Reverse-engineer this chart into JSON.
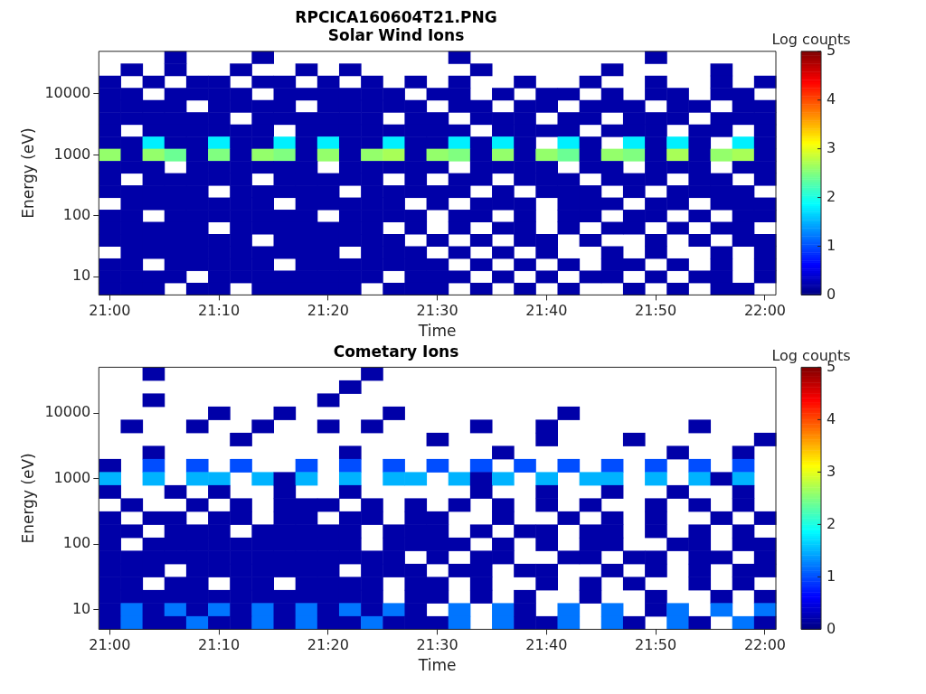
{
  "chart_data": [
    {
      "type": "heatmap",
      "title": "RPCICA160604T21.PNG",
      "subtitle": "Solar Wind Ions",
      "xlabel": "Time",
      "ylabel": "Energy (eV)",
      "clabel": "Log counts",
      "clim": [
        0,
        5
      ],
      "cticks": [
        0,
        1,
        2,
        3,
        4,
        5
      ],
      "categories": [
        "21:00",
        null,
        null,
        null,
        null,
        "21:10",
        null,
        null,
        null,
        null,
        "21:20",
        null,
        null,
        null,
        null,
        "21:30",
        null,
        null,
        null,
        null,
        "21:40",
        null,
        null,
        null,
        null,
        "21:50",
        null,
        null,
        null,
        null,
        "22:00"
      ],
      "y_categories": [
        null,
        null,
        null,
        "10000",
        null,
        null,
        null,
        null,
        "1000",
        null,
        null,
        null,
        null,
        "100",
        null,
        null,
        null,
        null,
        "10",
        null
      ],
      "cells": [
        [
          null,
          null,
          null,
          0.2,
          null,
          null,
          null,
          0.2,
          null,
          null,
          null,
          null,
          null,
          null,
          null,
          null,
          0.2,
          null,
          null,
          null,
          null,
          null,
          null,
          null,
          null,
          0.2,
          null,
          null,
          null,
          null,
          null
        ],
        [
          null,
          0.2,
          null,
          0.2,
          null,
          null,
          0.2,
          null,
          null,
          0.2,
          null,
          0.2,
          null,
          null,
          null,
          null,
          null,
          0.2,
          null,
          null,
          null,
          null,
          null,
          0.2,
          null,
          null,
          null,
          null,
          0.2,
          null,
          null
        ],
        [
          0.2,
          null,
          0.2,
          null,
          0.2,
          0.2,
          null,
          0.2,
          0.2,
          null,
          0.2,
          null,
          0.2,
          null,
          0.2,
          null,
          0.2,
          null,
          null,
          0.2,
          null,
          null,
          0.2,
          null,
          null,
          0.2,
          null,
          null,
          0.2,
          null,
          0.2
        ],
        [
          0.2,
          0.2,
          null,
          0.2,
          0.2,
          0.2,
          0.2,
          null,
          0.2,
          0.2,
          0.2,
          0.2,
          0.2,
          0.2,
          null,
          0.2,
          0.2,
          null,
          0.2,
          null,
          0.2,
          0.2,
          null,
          0.2,
          null,
          0.2,
          0.2,
          null,
          0.2,
          0.2,
          null
        ],
        [
          0.2,
          0.2,
          0.2,
          0.2,
          null,
          0.2,
          0.2,
          0.2,
          0.2,
          null,
          0.2,
          0.2,
          0.2,
          0.2,
          0.2,
          null,
          0.2,
          0.2,
          null,
          0.2,
          0.2,
          null,
          0.2,
          0.2,
          0.2,
          null,
          0.2,
          0.2,
          null,
          0.2,
          0.2
        ],
        [
          0.2,
          0.2,
          0.2,
          0.2,
          0.2,
          0.2,
          null,
          0.2,
          0.2,
          0.2,
          0.2,
          0.2,
          0.2,
          null,
          0.2,
          0.2,
          null,
          0.2,
          0.2,
          0.2,
          null,
          0.2,
          0.2,
          null,
          0.2,
          0.2,
          0.2,
          null,
          0.2,
          0.2,
          0.2
        ],
        [
          0.2,
          null,
          0.2,
          0.2,
          0.2,
          0.2,
          0.2,
          0.2,
          null,
          0.2,
          0.2,
          0.2,
          0.2,
          0.2,
          0.2,
          0.2,
          0.2,
          null,
          0.2,
          0.2,
          0.2,
          0.2,
          null,
          0.2,
          0.2,
          0.2,
          null,
          0.2,
          0.2,
          null,
          0.2
        ],
        [
          0.2,
          0.2,
          1.8,
          0.2,
          0.2,
          1.8,
          0.2,
          0.2,
          1.8,
          0.2,
          1.8,
          0.2,
          0.2,
          1.8,
          0.2,
          0.2,
          1.8,
          0.2,
          1.8,
          0.2,
          null,
          1.8,
          0.2,
          null,
          1.8,
          0.2,
          1.8,
          0.2,
          null,
          1.8,
          0.2
        ],
        [
          2.6,
          0.2,
          2.6,
          2.4,
          0.2,
          2.5,
          0.2,
          2.6,
          2.5,
          0.2,
          2.6,
          0.2,
          2.6,
          2.7,
          0.2,
          2.6,
          2.5,
          0.2,
          2.6,
          0.2,
          2.6,
          2.4,
          0.2,
          2.6,
          2.5,
          0.2,
          2.7,
          0.2,
          2.6,
          2.7,
          0.2
        ],
        [
          0.2,
          0.2,
          0.2,
          null,
          0.2,
          0.2,
          0.2,
          0.2,
          0.2,
          0.2,
          null,
          0.2,
          0.2,
          0.2,
          0.2,
          0.2,
          null,
          0.2,
          0.2,
          0.2,
          0.2,
          null,
          0.2,
          0.2,
          null,
          0.2,
          0.2,
          0.2,
          null,
          0.2,
          0.2
        ],
        [
          0.2,
          null,
          0.2,
          0.2,
          0.2,
          0.2,
          0.2,
          null,
          0.2,
          0.2,
          0.2,
          0.2,
          0.2,
          null,
          0.2,
          null,
          0.2,
          0.2,
          null,
          0.2,
          0.2,
          0.2,
          null,
          0.2,
          0.2,
          0.2,
          null,
          0.2,
          0.2,
          null,
          0.2
        ],
        [
          0.2,
          0.2,
          0.2,
          0.2,
          0.2,
          null,
          0.2,
          0.2,
          0.2,
          0.2,
          0.2,
          null,
          0.2,
          0.2,
          0.2,
          0.2,
          0.2,
          null,
          0.2,
          null,
          0.2,
          0.2,
          0.2,
          null,
          0.2,
          null,
          0.2,
          0.2,
          0.2,
          0.2,
          null
        ],
        [
          null,
          0.2,
          0.2,
          0.2,
          0.2,
          0.2,
          0.2,
          0.2,
          null,
          0.2,
          0.2,
          0.2,
          0.2,
          0.2,
          null,
          0.2,
          null,
          0.2,
          0.2,
          0.2,
          null,
          0.2,
          0.2,
          0.2,
          null,
          0.2,
          0.2,
          null,
          0.2,
          0.2,
          0.2
        ],
        [
          0.2,
          0.2,
          null,
          0.2,
          0.2,
          0.2,
          0.2,
          0.2,
          0.2,
          0.2,
          null,
          0.2,
          0.2,
          0.2,
          0.2,
          null,
          0.2,
          0.2,
          null,
          0.2,
          null,
          0.2,
          0.2,
          null,
          0.2,
          0.2,
          null,
          0.2,
          null,
          0.2,
          0.2
        ],
        [
          0.2,
          0.2,
          0.2,
          0.2,
          0.2,
          null,
          0.2,
          0.2,
          0.2,
          0.2,
          0.2,
          0.2,
          0.2,
          null,
          0.2,
          null,
          0.2,
          null,
          0.2,
          0.2,
          null,
          0.2,
          null,
          0.2,
          0.2,
          null,
          0.2,
          null,
          0.2,
          0.2,
          null
        ],
        [
          0.2,
          0.2,
          0.2,
          0.2,
          0.2,
          0.2,
          0.2,
          null,
          0.2,
          0.2,
          0.2,
          0.2,
          0.2,
          0.2,
          null,
          0.2,
          null,
          0.2,
          null,
          0.2,
          0.2,
          null,
          0.2,
          null,
          null,
          0.2,
          null,
          0.2,
          null,
          0.2,
          0.2
        ],
        [
          null,
          0.2,
          0.2,
          0.2,
          0.2,
          0.2,
          0.2,
          0.2,
          0.2,
          0.2,
          0.2,
          null,
          0.2,
          0.2,
          0.2,
          null,
          0.2,
          null,
          0.2,
          null,
          0.2,
          null,
          null,
          0.2,
          null,
          0.2,
          null,
          null,
          0.2,
          null,
          0.2
        ],
        [
          0.2,
          0.2,
          null,
          0.2,
          0.2,
          0.2,
          0.2,
          0.2,
          null,
          0.2,
          0.2,
          0.2,
          0.2,
          0.2,
          0.2,
          0.2,
          null,
          0.2,
          null,
          0.2,
          null,
          0.2,
          null,
          0.2,
          0.2,
          null,
          0.2,
          null,
          0.2,
          null,
          0.2
        ],
        [
          0.2,
          0.2,
          0.2,
          0.2,
          null,
          0.2,
          0.2,
          0.2,
          0.2,
          0.2,
          0.2,
          0.2,
          0.2,
          null,
          0.2,
          0.2,
          0.2,
          null,
          0.2,
          null,
          0.2,
          null,
          0.2,
          0.2,
          null,
          0.2,
          null,
          0.2,
          0.2,
          null,
          0.2
        ],
        [
          0.2,
          0.2,
          0.2,
          null,
          0.2,
          0.2,
          null,
          0.2,
          0.2,
          0.2,
          0.2,
          0.2,
          null,
          0.2,
          0.2,
          0.2,
          null,
          0.2,
          null,
          0.2,
          null,
          0.2,
          null,
          null,
          0.2,
          null,
          0.2,
          null,
          0.2,
          0.2,
          null
        ]
      ]
    },
    {
      "type": "heatmap",
      "title": "Cometary Ions",
      "xlabel": "Time",
      "ylabel": "Energy (eV)",
      "clabel": "Log counts",
      "clim": [
        0,
        5
      ],
      "cticks": [
        0,
        1,
        2,
        3,
        4,
        5
      ],
      "categories": [
        "21:00",
        null,
        null,
        null,
        null,
        "21:10",
        null,
        null,
        null,
        null,
        "21:20",
        null,
        null,
        null,
        null,
        "21:30",
        null,
        null,
        null,
        null,
        "21:40",
        null,
        null,
        null,
        null,
        "21:50",
        null,
        null,
        null,
        null,
        "22:00"
      ],
      "y_categories": [
        null,
        null,
        null,
        "10000",
        null,
        null,
        null,
        null,
        "1000",
        null,
        null,
        null,
        null,
        "100",
        null,
        null,
        null,
        null,
        "10",
        null
      ],
      "cells": [
        [
          null,
          null,
          0.2,
          null,
          null,
          null,
          null,
          null,
          null,
          null,
          null,
          null,
          0.2,
          null,
          null,
          null,
          null,
          null,
          null,
          null,
          null,
          null,
          null,
          null,
          null,
          null,
          null,
          null,
          null,
          null,
          null
        ],
        [
          null,
          null,
          null,
          null,
          null,
          null,
          null,
          null,
          null,
          null,
          null,
          0.2,
          null,
          null,
          null,
          null,
          null,
          null,
          null,
          null,
          null,
          null,
          null,
          null,
          null,
          null,
          null,
          null,
          null,
          null,
          null
        ],
        [
          null,
          null,
          0.2,
          null,
          null,
          null,
          null,
          null,
          null,
          null,
          0.2,
          null,
          null,
          null,
          null,
          null,
          null,
          null,
          null,
          null,
          null,
          null,
          null,
          null,
          null,
          null,
          null,
          null,
          null,
          null,
          null
        ],
        [
          null,
          null,
          null,
          null,
          null,
          0.2,
          null,
          null,
          0.2,
          null,
          null,
          null,
          null,
          0.2,
          null,
          null,
          null,
          null,
          null,
          null,
          null,
          0.2,
          null,
          null,
          null,
          null,
          null,
          null,
          null,
          null,
          null
        ],
        [
          null,
          0.2,
          null,
          null,
          0.2,
          null,
          null,
          0.2,
          null,
          null,
          0.2,
          null,
          0.2,
          null,
          null,
          null,
          null,
          0.2,
          null,
          null,
          0.2,
          null,
          null,
          null,
          null,
          null,
          null,
          0.2,
          null,
          null,
          null
        ],
        [
          null,
          null,
          null,
          null,
          null,
          null,
          0.2,
          null,
          null,
          null,
          null,
          null,
          null,
          null,
          null,
          0.2,
          null,
          null,
          null,
          null,
          0.2,
          null,
          null,
          null,
          0.2,
          null,
          null,
          null,
          null,
          null,
          0.2
        ],
        [
          null,
          null,
          0.2,
          null,
          null,
          null,
          null,
          null,
          null,
          null,
          null,
          0.2,
          null,
          null,
          null,
          null,
          null,
          null,
          0.2,
          null,
          null,
          null,
          null,
          null,
          null,
          null,
          0.2,
          null,
          null,
          0.2,
          null
        ],
        [
          0.2,
          null,
          1.0,
          null,
          1.0,
          null,
          1.0,
          null,
          null,
          1.0,
          null,
          1.0,
          null,
          1.0,
          null,
          1.0,
          null,
          1.0,
          null,
          1.0,
          null,
          1.0,
          null,
          1.0,
          null,
          1.0,
          null,
          1.0,
          null,
          1.0,
          null
        ],
        [
          1.5,
          null,
          1.5,
          null,
          1.5,
          1.5,
          null,
          1.5,
          0.2,
          1.5,
          null,
          1.5,
          null,
          1.5,
          1.5,
          null,
          1.5,
          0.2,
          1.5,
          null,
          1.5,
          null,
          1.5,
          1.5,
          null,
          1.5,
          null,
          1.5,
          0.2,
          1.5,
          null
        ],
        [
          0.2,
          null,
          null,
          0.2,
          null,
          0.2,
          null,
          null,
          0.2,
          null,
          null,
          0.2,
          null,
          null,
          null,
          null,
          null,
          0.2,
          null,
          null,
          0.2,
          null,
          null,
          0.2,
          null,
          null,
          0.2,
          null,
          null,
          0.2,
          null
        ],
        [
          null,
          0.2,
          null,
          null,
          0.2,
          null,
          0.2,
          null,
          0.2,
          0.2,
          0.2,
          null,
          0.2,
          null,
          0.2,
          null,
          0.2,
          null,
          0.2,
          null,
          0.2,
          null,
          0.2,
          null,
          null,
          0.2,
          null,
          0.2,
          null,
          0.2,
          null
        ],
        [
          0.2,
          null,
          0.2,
          0.2,
          null,
          0.2,
          0.2,
          null,
          0.2,
          0.2,
          null,
          0.2,
          0.2,
          null,
          0.2,
          0.2,
          null,
          null,
          0.2,
          null,
          null,
          0.2,
          null,
          0.2,
          null,
          0.2,
          null,
          null,
          0.2,
          null,
          0.2
        ],
        [
          0.2,
          0.2,
          null,
          0.2,
          0.2,
          0.2,
          null,
          0.2,
          0.2,
          0.2,
          0.2,
          0.2,
          null,
          0.2,
          0.2,
          0.2,
          null,
          0.2,
          null,
          0.2,
          0.2,
          null,
          0.2,
          0.2,
          null,
          0.2,
          null,
          0.2,
          null,
          0.2,
          null
        ],
        [
          0.2,
          null,
          0.2,
          0.2,
          0.2,
          0.2,
          0.2,
          0.2,
          0.2,
          0.2,
          0.2,
          0.2,
          null,
          0.2,
          0.2,
          0.2,
          0.2,
          null,
          0.2,
          null,
          0.2,
          null,
          0.2,
          0.2,
          null,
          null,
          0.2,
          0.2,
          null,
          0.2,
          0.2
        ],
        [
          0.2,
          0.2,
          0.2,
          0.2,
          0.2,
          0.2,
          0.2,
          0.2,
          0.2,
          0.2,
          0.2,
          0.2,
          0.2,
          0.2,
          null,
          0.2,
          null,
          0.2,
          0.2,
          null,
          null,
          0.2,
          0.2,
          null,
          0.2,
          0.2,
          null,
          0.2,
          0.2,
          null,
          0.2
        ],
        [
          0.2,
          0.2,
          0.2,
          null,
          0.2,
          0.2,
          0.2,
          0.2,
          0.2,
          0.2,
          0.2,
          null,
          0.2,
          0.2,
          0.2,
          null,
          0.2,
          0.2,
          null,
          0.2,
          0.2,
          null,
          null,
          0.2,
          null,
          0.2,
          null,
          0.2,
          null,
          0.2,
          0.2
        ],
        [
          0.2,
          0.2,
          null,
          0.2,
          0.2,
          null,
          0.2,
          0.2,
          null,
          0.2,
          0.2,
          0.2,
          0.2,
          null,
          0.2,
          0.2,
          null,
          0.2,
          null,
          null,
          0.2,
          null,
          0.2,
          null,
          0.2,
          null,
          null,
          0.2,
          null,
          0.2,
          null
        ],
        [
          0.2,
          0.2,
          0.2,
          0.2,
          0.2,
          0.2,
          0.2,
          0.2,
          0.2,
          0.2,
          0.2,
          0.2,
          0.2,
          null,
          0.2,
          0.2,
          null,
          0.2,
          null,
          0.2,
          null,
          null,
          0.2,
          null,
          null,
          0.2,
          null,
          null,
          0.2,
          null,
          0.2
        ],
        [
          0.2,
          1.2,
          0.2,
          1.2,
          0.2,
          1.2,
          0.2,
          1.2,
          0.2,
          1.2,
          0.2,
          1.2,
          0.2,
          1.2,
          0.2,
          null,
          1.2,
          null,
          1.2,
          0.2,
          null,
          1.2,
          null,
          1.2,
          null,
          0.2,
          1.2,
          null,
          1.2,
          null,
          1.2
        ],
        [
          0.2,
          1.2,
          0.2,
          0.2,
          1.2,
          0.2,
          0.2,
          1.2,
          0.2,
          1.2,
          0.2,
          0.2,
          1.2,
          0.2,
          0.2,
          0.2,
          1.2,
          null,
          1.2,
          0.2,
          0.2,
          1.2,
          null,
          1.2,
          0.2,
          null,
          1.2,
          0.2,
          null,
          1.2,
          0.2
        ]
      ]
    }
  ]
}
